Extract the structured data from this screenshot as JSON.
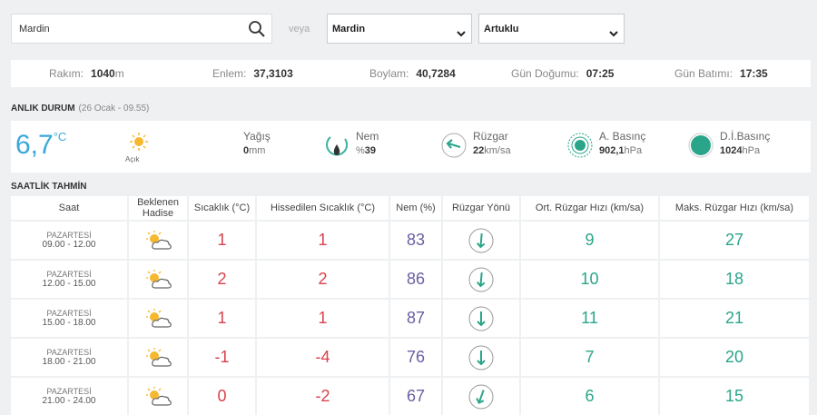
{
  "search": {
    "input": "Mardin",
    "or": "veya",
    "province": "Mardin",
    "district": "Artuklu"
  },
  "info": [
    {
      "label": "Rakım:",
      "value": "1040",
      "unit": "m"
    },
    {
      "label": "Enlem:",
      "value": "37,3103"
    },
    {
      "label": "Boylam:",
      "value": "40,7284"
    },
    {
      "label": "Gün Doğumu:",
      "value": "07:25"
    },
    {
      "label": "Gün Batımı:",
      "value": "17:35"
    }
  ],
  "current": {
    "title": "ANLIK DURUM",
    "time": "(26 Ocak - 09.55)",
    "temp": "6,7",
    "temp_unit": "°C",
    "condition": "Açık",
    "rain_label": "Yağış",
    "rain": "0",
    "rain_unit": "mm",
    "humidity_label": "Nem",
    "humidity_prefix": "%",
    "humidity": "39",
    "wind_label": "Rüzgar",
    "wind": "22",
    "wind_unit": "km/sa",
    "pressure_label": "A. Basınç",
    "pressure": "902,1",
    "pressure_unit": "hPa",
    "sea_pressure_label": "D.İ.Basınç",
    "sea_pressure": "1024",
    "sea_pressure_unit": "hPa"
  },
  "hourly": {
    "title": "SAATLİK TAHMİN",
    "headers": [
      "Saat",
      "Beklenen Hadise",
      "Sıcaklık (°C)",
      "Hissedilen Sıcaklık (°C)",
      "Nem (%)",
      "Rüzgar Yönü",
      "Ort. Rüzgar Hızı (km/sa)",
      "Maks. Rüzgar Hızı (km/sa)"
    ],
    "rows": [
      {
        "day": "PAZARTESİ",
        "time": "09.00 - 12.00",
        "temp": "1",
        "feels": "1",
        "humidity": "83",
        "wind": "9",
        "max_wind": "27"
      },
      {
        "day": "PAZARTESİ",
        "time": "12.00 - 15.00",
        "temp": "2",
        "feels": "2",
        "humidity": "86",
        "wind": "10",
        "max_wind": "18"
      },
      {
        "day": "PAZARTESİ",
        "time": "15.00 - 18.00",
        "temp": "1",
        "feels": "1",
        "humidity": "87",
        "wind": "11",
        "max_wind": "21"
      },
      {
        "day": "PAZARTESİ",
        "time": "18.00 - 21.00",
        "temp": "-1",
        "feels": "-4",
        "humidity": "76",
        "wind": "7",
        "max_wind": "20"
      },
      {
        "day": "PAZARTESİ",
        "time": "21.00 - 24.00",
        "temp": "0",
        "feels": "-2",
        "humidity": "67",
        "wind": "6",
        "max_wind": "15"
      }
    ]
  }
}
